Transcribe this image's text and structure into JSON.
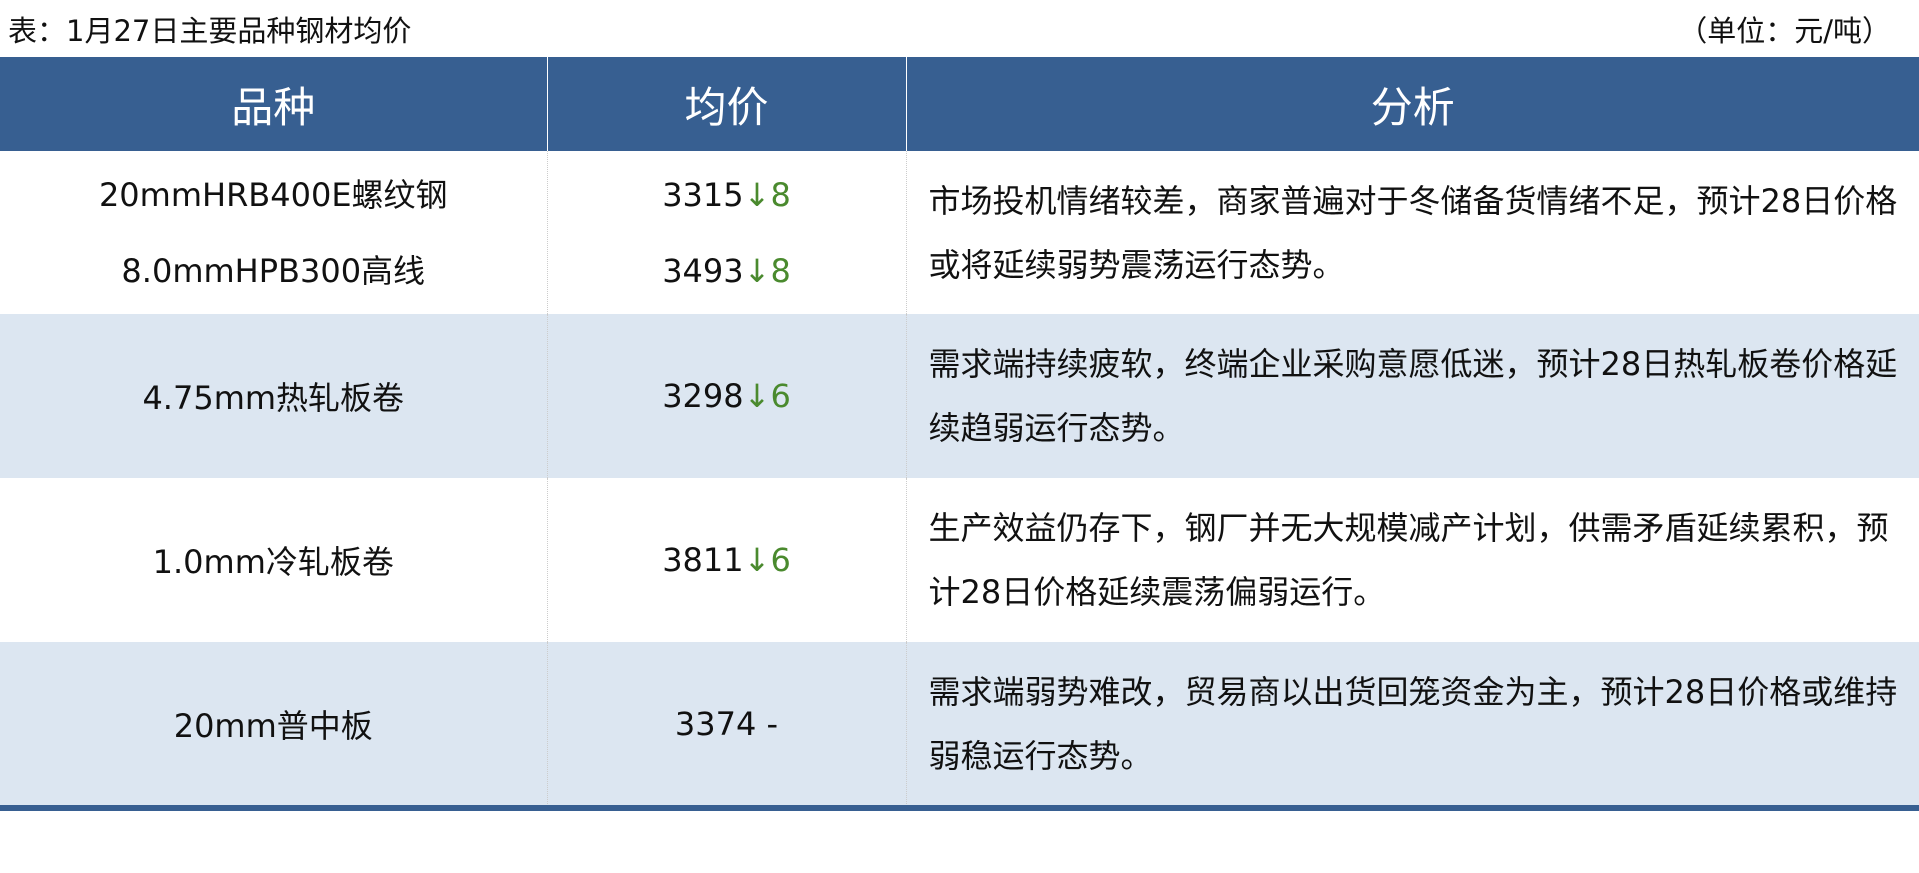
{
  "caption": "表：1月27日主要品种钢材均价",
  "unit": "（单位：元/吨）",
  "columns": [
    "品种",
    "均价",
    "分析"
  ],
  "down_arrow": "↓",
  "colors": {
    "header": "#375f91",
    "stripe": "#dce6f1",
    "down": "#4a8a2e"
  },
  "rows": [
    {
      "items": [
        {
          "name": "20mmHRB400E螺纹钢",
          "price": "3315",
          "arrow": "↓",
          "change": "8"
        },
        {
          "name": "8.0mmHPB300高线",
          "price": "3493",
          "arrow": "↓",
          "change": "8"
        }
      ],
      "analysis": "市场投机情绪较差，商家普遍对于冬储备货情绪不足，预计28日价格或将延续弱势震荡运行态势。"
    },
    {
      "items": [
        {
          "name": "4.75mm热轧板卷",
          "price": "3298",
          "arrow": "↓",
          "change": "6"
        }
      ],
      "analysis": "需求端持续疲软，终端企业采购意愿低迷，预计28日热轧板卷价格延续趋弱运行态势。"
    },
    {
      "items": [
        {
          "name": "1.0mm冷轧板卷",
          "price": "3811",
          "arrow": "↓",
          "change": "6"
        }
      ],
      "analysis": "生产效益仍存下，钢厂并无大规模减产计划，供需矛盾延续累积，预计28日价格延续震荡偏弱运行。"
    },
    {
      "items": [
        {
          "name": "20mm普中板",
          "price": "3374",
          "arrow": "",
          "change": "-"
        }
      ],
      "analysis": "需求端弱势难改，贸易商以出货回笼资金为主，预计28日价格或维持弱稳运行态势。"
    }
  ]
}
